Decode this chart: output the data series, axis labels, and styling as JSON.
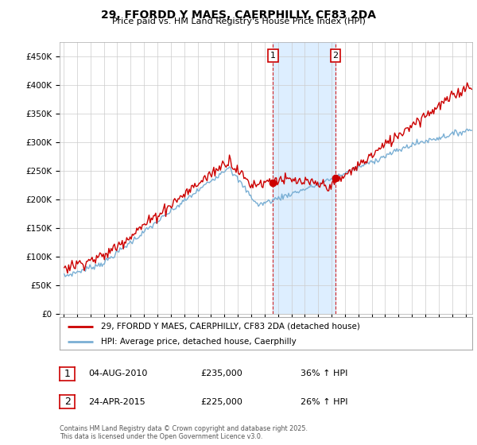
{
  "title": "29, FFORDD Y MAES, CAERPHILLY, CF83 2DA",
  "subtitle": "Price paid vs. HM Land Registry's House Price Index (HPI)",
  "ylim": [
    0,
    475000
  ],
  "yticks": [
    0,
    50000,
    100000,
    150000,
    200000,
    250000,
    300000,
    350000,
    400000,
    450000
  ],
  "line1_color": "#cc0000",
  "line2_color": "#7aafd4",
  "line1_label": "29, FFORDD Y MAES, CAERPHILLY, CF83 2DA (detached house)",
  "line2_label": "HPI: Average price, detached house, Caerphilly",
  "marker1": {
    "date_str": "04-AUG-2010",
    "price": 235000,
    "hpi_pct": "36% ↑ HPI",
    "label": "1",
    "t": 2010.625
  },
  "marker2": {
    "date_str": "24-APR-2015",
    "price": 225000,
    "hpi_pct": "26% ↑ HPI",
    "label": "2",
    "t": 2015.292
  },
  "footer": "Contains HM Land Registry data © Crown copyright and database right 2025.\nThis data is licensed under the Open Government Licence v3.0.",
  "background_color": "#ffffff",
  "grid_color": "#cccccc",
  "shade_color": "#ddeeff",
  "xlim_left": 1994.7,
  "xlim_right": 2025.5
}
